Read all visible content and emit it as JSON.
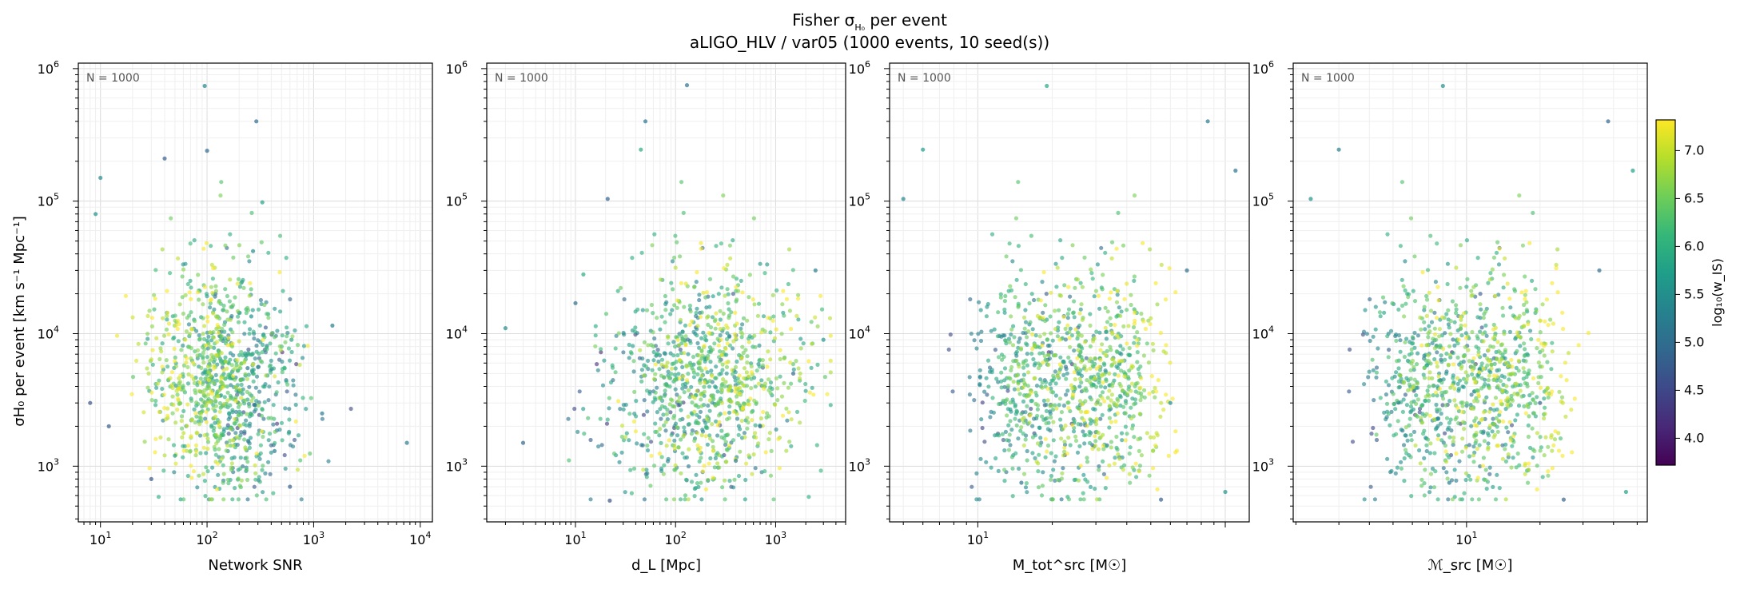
{
  "figure": {
    "title_line1_pre": "Fisher σ",
    "title_line1_sub": "H₀",
    "title_line1_post": " per event",
    "title_line2": "aLIGO_HLV / var05  (1000 events, 10 seed(s))"
  },
  "colors": {
    "viridis": [
      "#440154",
      "#482878",
      "#3e4989",
      "#31688e",
      "#26828e",
      "#1f9e89",
      "#35b779",
      "#6ece58",
      "#b5de2b",
      "#fde725"
    ]
  },
  "ylabel": "σH₀ per event [km s⁻¹ Mpc⁻¹]",
  "colorbar": {
    "label": "log₁₀(w_IS)",
    "range": [
      3.72,
      7.32
    ],
    "ticks": [
      "4.0",
      "4.5",
      "5.0",
      "5.5",
      "6.0",
      "6.5",
      "7.0"
    ],
    "tick_values": [
      4.0,
      4.5,
      5.0,
      5.5,
      6.0,
      6.5,
      7.0
    ]
  },
  "chart_data": [
    {
      "type": "scatter",
      "xscale": "log",
      "yscale": "log",
      "xlabel": "Network SNR",
      "annotation": "N = 1000",
      "xlim": [
        6.2,
        13000
      ],
      "ylim": [
        380,
        1100000
      ],
      "xticks": [
        {
          "base": "10",
          "exp": "1",
          "v": 10
        },
        {
          "base": "10",
          "exp": "2",
          "v": 100
        },
        {
          "base": "10",
          "exp": "3",
          "v": 1000
        },
        {
          "base": "10",
          "exp": "4",
          "v": 10000
        }
      ],
      "yticks": [
        {
          "base": "10",
          "exp": "3",
          "v": 1000
        },
        {
          "base": "10",
          "exp": "4",
          "v": 10000
        },
        {
          "base": "10",
          "exp": "5",
          "v": 100000
        },
        {
          "base": "10",
          "exp": "6",
          "v": 1000000
        }
      ],
      "sample_points": [
        [
          95,
          740000
        ],
        [
          290,
          400000
        ],
        [
          100,
          240000
        ],
        [
          330,
          98000
        ],
        [
          1500,
          11500
        ],
        [
          7500,
          1500
        ],
        [
          620,
          9000
        ],
        [
          1200,
          2500
        ],
        [
          430,
          1300
        ],
        [
          600,
          700
        ],
        [
          240,
          5500
        ],
        [
          260,
          13500
        ],
        [
          270,
          42000
        ],
        [
          9,
          80000
        ],
        [
          10,
          150000
        ],
        [
          8,
          3000
        ],
        [
          12,
          2000
        ],
        [
          30,
          800
        ],
        [
          40,
          210000
        ],
        [
          50,
          1200
        ]
      ]
    },
    {
      "type": "scatter",
      "xscale": "log",
      "yscale": "log",
      "xlabel": "d_L [Mpc]",
      "annotation": "N = 1000",
      "xlim": [
        1.3,
        5000
      ],
      "ylim": [
        380,
        1100000
      ],
      "xticks": [
        {
          "base": "10",
          "exp": "1",
          "v": 10
        },
        {
          "base": "10",
          "exp": "2",
          "v": 100
        },
        {
          "base": "10",
          "exp": "3",
          "v": 1000
        }
      ],
      "yticks": [
        {
          "base": "10",
          "exp": "3",
          "v": 1000
        },
        {
          "base": "10",
          "exp": "4",
          "v": 10000
        },
        {
          "base": "10",
          "exp": "5",
          "v": 100000
        },
        {
          "base": "10",
          "exp": "6",
          "v": 1000000
        }
      ],
      "sample_points": [
        [
          130,
          750000
        ],
        [
          50,
          400000
        ],
        [
          45,
          245000
        ],
        [
          2,
          11000
        ],
        [
          3,
          1500
        ],
        [
          21,
          104000
        ],
        [
          12,
          28000
        ],
        [
          10,
          17000
        ],
        [
          22,
          550
        ],
        [
          3000,
          9000
        ],
        [
          2500,
          30000
        ],
        [
          1500,
          5000
        ],
        [
          700,
          2000
        ],
        [
          400,
          1100
        ]
      ]
    },
    {
      "type": "scatter",
      "xscale": "log",
      "yscale": "log",
      "xlabel": "M_tot^src [M☉]",
      "annotation": "N = 1000",
      "xlim": [
        4.4,
        125
      ],
      "ylim": [
        380,
        1100000
      ],
      "xticks": [
        {
          "base": "10",
          "exp": "1",
          "v": 10
        }
      ],
      "yticks": [
        {
          "base": "10",
          "exp": "3",
          "v": 1000
        },
        {
          "base": "10",
          "exp": "4",
          "v": 10000
        },
        {
          "base": "10",
          "exp": "5",
          "v": 100000
        },
        {
          "base": "10",
          "exp": "6",
          "v": 1000000
        }
      ],
      "sample_points": [
        [
          19,
          740000
        ],
        [
          85,
          400000
        ],
        [
          6,
          245000
        ],
        [
          5,
          104000
        ],
        [
          110,
          170000
        ],
        [
          70,
          30000
        ],
        [
          60,
          3000
        ],
        [
          100,
          640
        ],
        [
          55,
          560
        ],
        [
          15,
          750
        ]
      ]
    },
    {
      "type": "scatter",
      "xscale": "log",
      "yscale": "log",
      "xlabel": "ℳ_src [M☉]",
      "annotation": "N = 1000",
      "xlim": [
        1.95,
        55
      ],
      "ylim": [
        380,
        1100000
      ],
      "xticks": [
        {
          "base": "10",
          "exp": "1",
          "v": 10
        }
      ],
      "yticks": [
        {
          "base": "10",
          "exp": "3",
          "v": 1000
        },
        {
          "base": "10",
          "exp": "4",
          "v": 10000
        },
        {
          "base": "10",
          "exp": "5",
          "v": 100000
        },
        {
          "base": "10",
          "exp": "6",
          "v": 1000000
        }
      ],
      "sample_points": [
        [
          8,
          740000
        ],
        [
          38,
          400000
        ],
        [
          3,
          245000
        ],
        [
          2.3,
          104000
        ],
        [
          48,
          170000
        ],
        [
          35,
          30000
        ],
        [
          20,
          3000
        ],
        [
          45,
          640
        ],
        [
          25,
          560
        ],
        [
          8.5,
          750
        ]
      ]
    }
  ]
}
